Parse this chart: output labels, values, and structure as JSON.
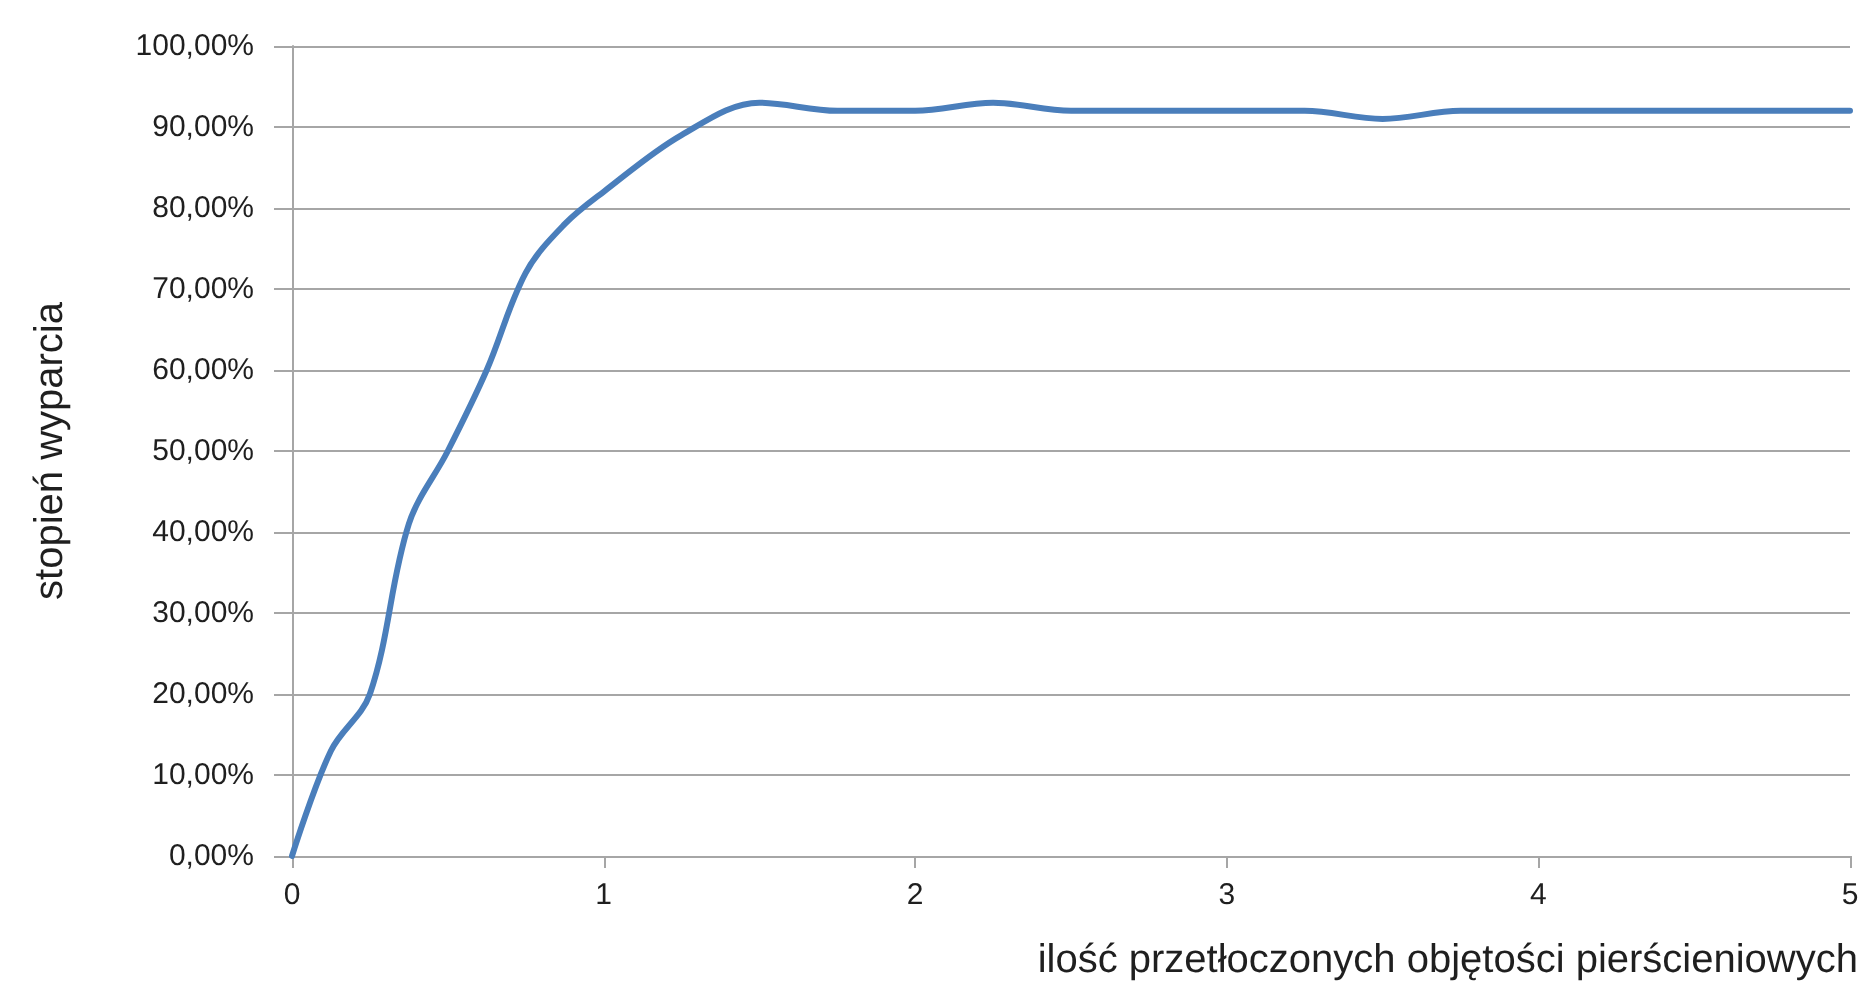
{
  "chart_data": {
    "type": "line",
    "xlabel": "ilość przetłoczonych objętości pierścieniowych",
    "ylabel": "stopień wyparcia",
    "x": [
      0,
      0.125,
      0.25,
      0.375,
      0.5,
      0.625,
      0.75,
      0.875,
      1,
      1.25,
      1.5,
      1.75,
      2,
      2.25,
      2.5,
      2.75,
      3,
      3.25,
      3.5,
      3.75,
      4,
      4.25,
      4.5,
      4.75,
      5
    ],
    "series": [
      {
        "color": "#4a7ebb",
        "values": [
          0,
          13,
          20,
          41,
          50,
          60,
          72,
          78,
          82,
          89,
          93,
          92,
          92,
          93,
          92,
          92,
          92,
          92,
          91,
          92,
          92,
          92,
          92,
          92,
          92
        ]
      }
    ],
    "xlim": [
      0,
      5
    ],
    "xticks": [
      0,
      1,
      2,
      3,
      4,
      5
    ],
    "ylim": [
      0,
      100
    ],
    "yticks": [
      {
        "value": 0,
        "label": "0,00%"
      },
      {
        "value": 10,
        "label": "10,00%"
      },
      {
        "value": 20,
        "label": "20,00%"
      },
      {
        "value": 30,
        "label": "30,00%"
      },
      {
        "value": 40,
        "label": "40,00%"
      },
      {
        "value": 50,
        "label": "50,00%"
      },
      {
        "value": 60,
        "label": "60,00%"
      },
      {
        "value": 70,
        "label": "70,00%"
      },
      {
        "value": 80,
        "label": "80,00%"
      },
      {
        "value": 90,
        "label": "90,00%"
      },
      {
        "value": 100,
        "label": "100,00%"
      }
    ],
    "grid": "y",
    "marker": "none",
    "line_style": "solid"
  }
}
